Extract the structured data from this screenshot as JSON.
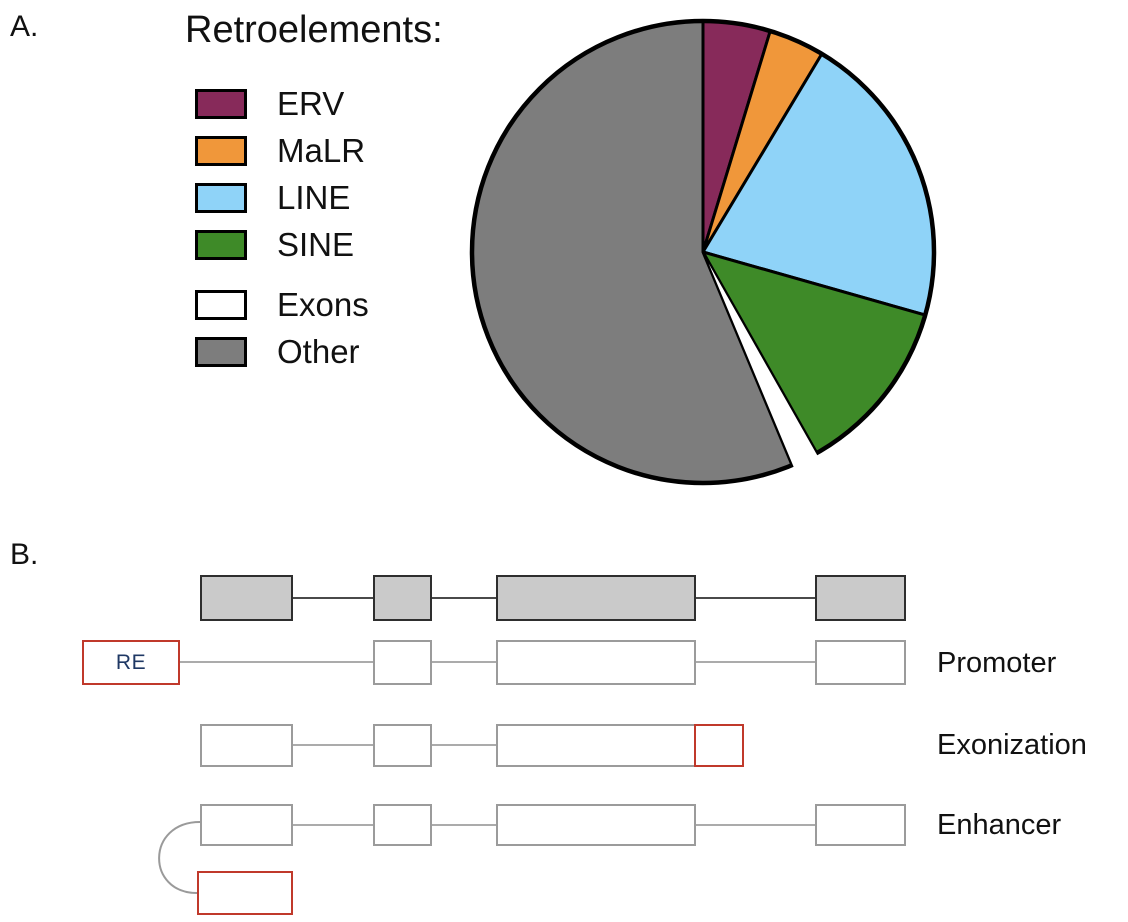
{
  "panel_a": {
    "label": "A.",
    "title": "Retroelements:"
  },
  "chart_data": {
    "type": "pie",
    "title": "Retroelements:",
    "legend_position": "left",
    "value_unit": "percent of genome (estimated from slice angles; no numeric labels are printed on the chart)",
    "start_angle_deg": 0,
    "direction": "clockwise",
    "slices": [
      {
        "label": "ERV",
        "value": 4.7,
        "color": "#872A5A",
        "exploded": false
      },
      {
        "label": "MaLR",
        "value": 3.9,
        "color": "#F0973A",
        "exploded": false
      },
      {
        "label": "LINE",
        "value": 20.8,
        "color": "#8FD3F8",
        "exploded": false
      },
      {
        "label": "SINE",
        "value": 12.4,
        "color": "#3E8A28",
        "exploded": false
      },
      {
        "label": "Exons",
        "value": 1.9,
        "color": "#FFFFFF",
        "exploded": true
      },
      {
        "label": "Other",
        "value": 56.3,
        "color": "#7D7D7D",
        "exploded": false
      }
    ]
  },
  "panel_b": {
    "label": "B.",
    "re_box_label": "RE",
    "rows": [
      {
        "name": "reference-gene",
        "label": ""
      },
      {
        "name": "promoter",
        "label": "Promoter"
      },
      {
        "name": "exonization",
        "label": "Exonization"
      },
      {
        "name": "enhancer",
        "label": "Enhancer"
      }
    ]
  },
  "colors": {
    "reference_exon_fill": "#CACACA",
    "reference_exon_border": "#2E2E2E",
    "alt_exon_border": "#9B9B9B",
    "re_outline_red": "#C0392B",
    "re_text_navy": "#1F3864",
    "intron_line_gray": "#ABABAB",
    "intron_line_dark": "#4A4A4A",
    "text_black": "#1A1A1A",
    "pie_outline": "#000000"
  }
}
